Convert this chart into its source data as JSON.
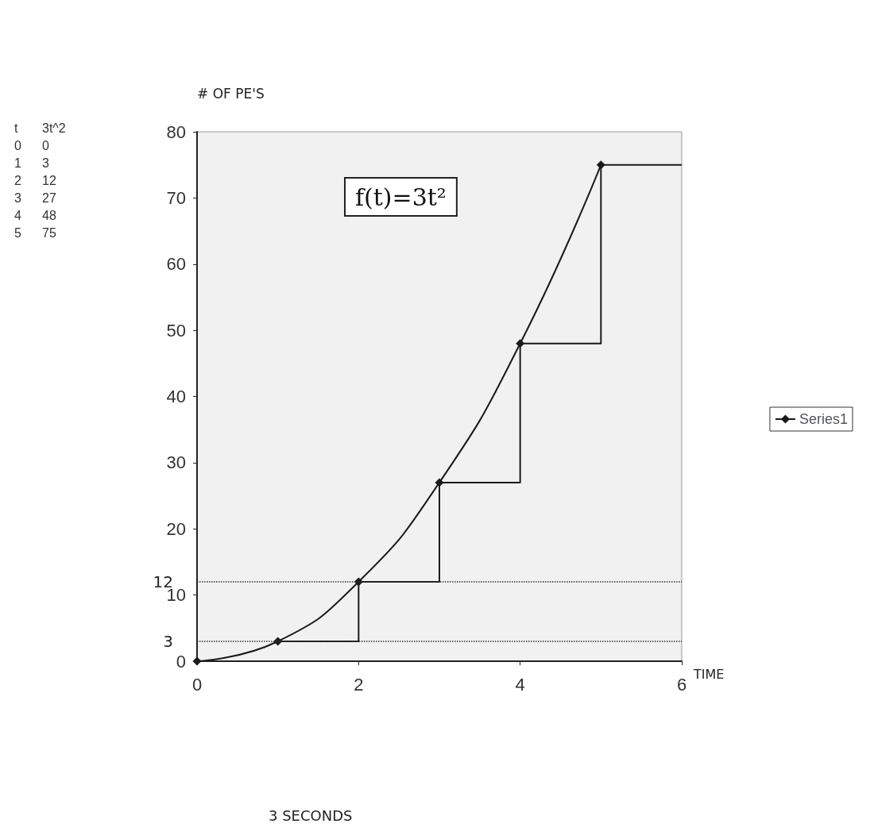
{
  "chart_data": {
    "type": "line",
    "xlabel": "TIME",
    "ylabel": "# OF PE'S",
    "xlim": [
      0,
      6
    ],
    "xticks": [
      0,
      2,
      4,
      6
    ],
    "ylim": [
      0,
      80
    ],
    "yticks": [
      0,
      10,
      20,
      30,
      40,
      50,
      60,
      70,
      80
    ],
    "x": [
      0,
      1,
      2,
      3,
      4,
      5
    ],
    "series": [
      {
        "name": "Series1",
        "color": "#1a1a1a",
        "values": [
          0,
          3,
          12,
          27,
          48,
          75
        ],
        "marker": "diamond"
      },
      {
        "type": "step",
        "color": "#1a1a1a",
        "x": [
          1,
          2,
          3,
          4,
          5,
          6
        ],
        "values": [
          3,
          12,
          27,
          48,
          75,
          75
        ],
        "marker": "none"
      }
    ],
    "ref_lines": [
      {
        "axis": "y",
        "value": 12,
        "label": "12",
        "line_style": "dotted"
      },
      {
        "axis": "y",
        "value": 3,
        "label": "3",
        "line_style": "dotted"
      }
    ],
    "annotations": [
      "t 3t^2",
      "0 0",
      "1 3",
      "2 12",
      "3 27",
      "4 48",
      "5 75",
      "f(t)=3t²",
      "3 SECONDS"
    ],
    "legend": "right",
    "grid": false
  }
}
